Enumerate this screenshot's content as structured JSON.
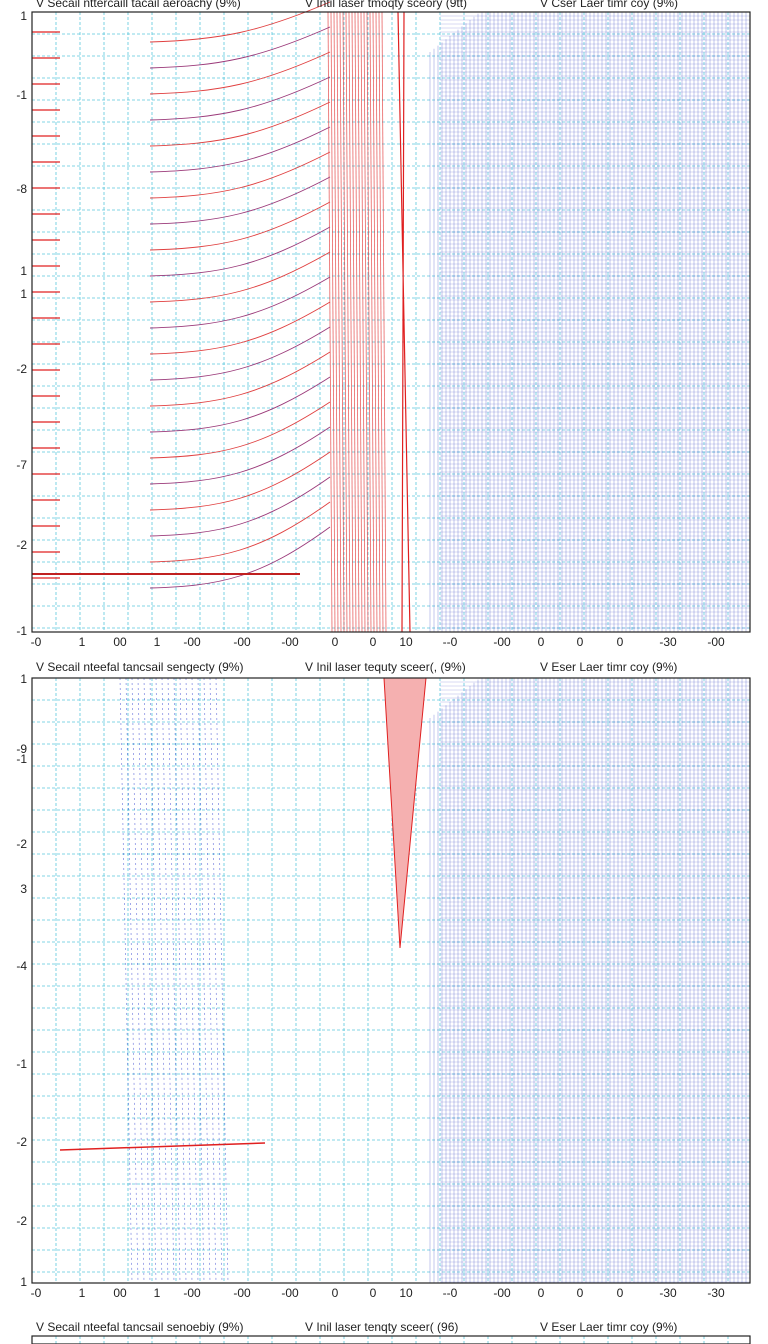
{
  "panels": [
    {
      "headers": [
        "V Secail nttercaill tacail aeroachy (9%)",
        "V Intil laser tmoqty sceory (9tt)",
        "V Cser Laer timr coy (9%)"
      ],
      "y_labels": [
        "1",
        "-1",
        "-8",
        "1",
        "1",
        "-2",
        "-7",
        "-2",
        "-1"
      ],
      "x_labels": [
        "-0",
        "1",
        "00",
        "1",
        "-00",
        "-00",
        "-00",
        "0",
        "0",
        "10",
        "--0",
        "-00",
        "0",
        "0",
        "0",
        "-30",
        "-00"
      ]
    },
    {
      "headers": [
        "V Secail nteefal tancsail sengecty (9%)",
        "V Inil laser tequty sceer(, (9%)",
        "V Eser Laer timr coy (9%)"
      ],
      "y_labels": [
        "1",
        "-9",
        "-1",
        "-2",
        "3",
        "-4",
        "-1",
        "-2",
        "-2",
        "1"
      ],
      "x_labels": [
        "-0",
        "1",
        "00",
        "1",
        "-00",
        "-00",
        "-00",
        "0",
        "0",
        "10",
        "--0",
        "-00",
        "0",
        "0",
        "0",
        "-30",
        "-30"
      ]
    },
    {
      "headers": [
        "V Secail nteefal tancsail senoebiy (9%)",
        "V Inil laser tenqty sceer( (96)",
        "V Eser Laer timr coy (9%)"
      ],
      "y_labels": [],
      "x_labels": []
    }
  ]
}
